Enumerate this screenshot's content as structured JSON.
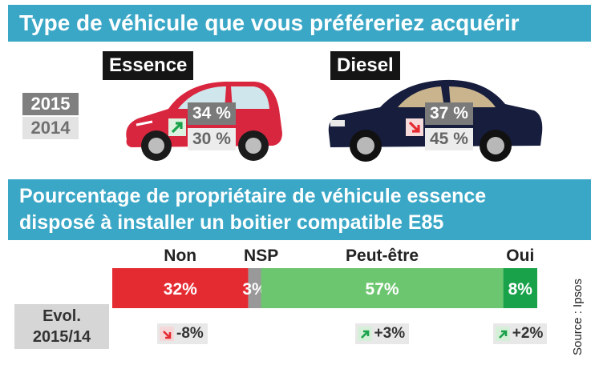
{
  "top_title": "Type de véhicule que vous préféreriez acquérir",
  "years": {
    "current": "2015",
    "previous": "2014"
  },
  "cars": [
    {
      "label": "Essence",
      "pct_2015": "34 %",
      "pct_2014": "30 %",
      "trend": "up",
      "color": "#d9263f"
    },
    {
      "label": "Diesel",
      "pct_2015": "37 %",
      "pct_2014": "45 %",
      "trend": "down",
      "color": "#161d3d"
    }
  ],
  "bottom_title_line1": "Pourcentage de propriétaire de véhicule essence",
  "bottom_title_line2": "disposé à installer un boitier compatible E85",
  "evol_label_line1": "Evol.",
  "evol_label_line2": "2015/14",
  "source": "Source : Ipsos",
  "colors": {
    "banner": "#3aa7c6",
    "non": "#e42b32",
    "nsp": "#999999",
    "peut_etre": "#6cc56f",
    "oui": "#1aa24a",
    "up_arrow": "#1aa24a",
    "down_arrow": "#e42b32"
  },
  "chart_data": {
    "type": "bar",
    "stacked": true,
    "orientation": "horizontal",
    "categories": [
      "Non",
      "NSP",
      "Peut-être",
      "Oui"
    ],
    "values": [
      32,
      3,
      57,
      8
    ],
    "value_labels": [
      "32%",
      "3%",
      "57%",
      "8%"
    ],
    "evolution": [
      {
        "category": "Non",
        "label": "-8%",
        "trend": "down"
      },
      {
        "category": "Peut-être",
        "label": "+3%",
        "trend": "up"
      },
      {
        "category": "Oui",
        "label": "+2%",
        "trend": "up"
      }
    ],
    "title": "Pourcentage de propriétaire de véhicule essence disposé à installer un boitier compatible E85"
  }
}
